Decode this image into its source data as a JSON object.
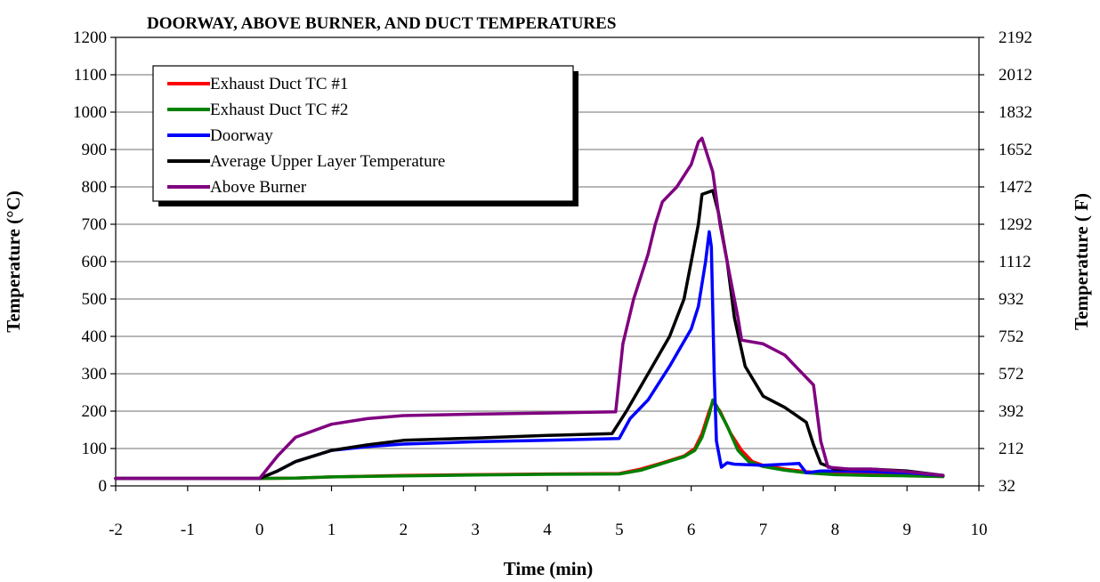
{
  "chart_data": {
    "type": "line",
    "title": "DOORWAY, ABOVE BURNER, AND DUCT TEMPERATURES",
    "xlabel": "Time (min)",
    "ylabel": "Temperature (°C)",
    "y2label": "Temperature ( F)",
    "xlim": [
      -2,
      10
    ],
    "ylim": [
      0,
      1200
    ],
    "x_ticks": [
      "-2",
      "-1",
      "0",
      "1",
      "2",
      "3",
      "4",
      "5",
      "6",
      "7",
      "8",
      "9",
      "10"
    ],
    "y_ticks": [
      "0",
      "100",
      "200",
      "300",
      "400",
      "500",
      "600",
      "700",
      "800",
      "900",
      "1000",
      "1100",
      "1200"
    ],
    "y2_ticks": [
      "32",
      "212",
      "392",
      "572",
      "752",
      "932",
      "1112",
      "1292",
      "1472",
      "1652",
      "1832",
      "2012",
      "2192"
    ],
    "grid": true,
    "legend_position": "top-left",
    "series": [
      {
        "name": "Exhaust Duct TC #1",
        "color": "#ff0000",
        "points": [
          [
            -2,
            20
          ],
          [
            0,
            20
          ],
          [
            0.5,
            21
          ],
          [
            1,
            24
          ],
          [
            2,
            28
          ],
          [
            3,
            30
          ],
          [
            4,
            32
          ],
          [
            5,
            33
          ],
          [
            5.3,
            45
          ],
          [
            5.6,
            62
          ],
          [
            5.9,
            80
          ],
          [
            6.05,
            100
          ],
          [
            6.15,
            140
          ],
          [
            6.25,
            200
          ],
          [
            6.3,
            225
          ],
          [
            6.4,
            200
          ],
          [
            6.55,
            140
          ],
          [
            6.7,
            95
          ],
          [
            6.85,
            65
          ],
          [
            7,
            55
          ],
          [
            7.3,
            45
          ],
          [
            7.6,
            38
          ],
          [
            8,
            32
          ],
          [
            8.5,
            30
          ],
          [
            9,
            28
          ],
          [
            9.5,
            25
          ]
        ]
      },
      {
        "name": "Exhaust Duct TC #2",
        "color": "#008000",
        "points": [
          [
            -2,
            20
          ],
          [
            0,
            20
          ],
          [
            0.5,
            21
          ],
          [
            1,
            24
          ],
          [
            2,
            27
          ],
          [
            3,
            29
          ],
          [
            4,
            31
          ],
          [
            5,
            32
          ],
          [
            5.3,
            42
          ],
          [
            5.6,
            60
          ],
          [
            5.9,
            78
          ],
          [
            6.05,
            95
          ],
          [
            6.15,
            130
          ],
          [
            6.25,
            190
          ],
          [
            6.3,
            230
          ],
          [
            6.35,
            215
          ],
          [
            6.5,
            160
          ],
          [
            6.65,
            95
          ],
          [
            6.8,
            65
          ],
          [
            7,
            52
          ],
          [
            7.3,
            42
          ],
          [
            7.6,
            35
          ],
          [
            8,
            30
          ],
          [
            8.5,
            28
          ],
          [
            9,
            27
          ],
          [
            9.5,
            25
          ]
        ]
      },
      {
        "name": "Doorway",
        "color": "#0000ff",
        "points": [
          [
            -2,
            20
          ],
          [
            0,
            20
          ],
          [
            0.25,
            40
          ],
          [
            0.5,
            65
          ],
          [
            1,
            95
          ],
          [
            1.5,
            105
          ],
          [
            2,
            112
          ],
          [
            3,
            118
          ],
          [
            4,
            122
          ],
          [
            5,
            127
          ],
          [
            5.15,
            180
          ],
          [
            5.4,
            230
          ],
          [
            5.7,
            320
          ],
          [
            6,
            420
          ],
          [
            6.1,
            480
          ],
          [
            6.2,
            600
          ],
          [
            6.25,
            680
          ],
          [
            6.28,
            640
          ],
          [
            6.32,
            300
          ],
          [
            6.35,
            120
          ],
          [
            6.42,
            50
          ],
          [
            6.5,
            62
          ],
          [
            6.6,
            58
          ],
          [
            7,
            55
          ],
          [
            7.5,
            60
          ],
          [
            7.6,
            35
          ],
          [
            7.8,
            40
          ],
          [
            8,
            40
          ],
          [
            8.5,
            38
          ],
          [
            9,
            35
          ],
          [
            9.5,
            28
          ]
        ]
      },
      {
        "name": "Average Upper Layer Temperature",
        "color": "#000000",
        "points": [
          [
            -2,
            20
          ],
          [
            0,
            20
          ],
          [
            0.25,
            40
          ],
          [
            0.5,
            65
          ],
          [
            1,
            95
          ],
          [
            1.5,
            110
          ],
          [
            2,
            122
          ],
          [
            3,
            128
          ],
          [
            4,
            135
          ],
          [
            4.9,
            140
          ],
          [
            5.1,
            200
          ],
          [
            5.4,
            300
          ],
          [
            5.7,
            400
          ],
          [
            5.9,
            500
          ],
          [
            6,
            600
          ],
          [
            6.1,
            700
          ],
          [
            6.15,
            780
          ],
          [
            6.3,
            790
          ],
          [
            6.38,
            730
          ],
          [
            6.5,
            600
          ],
          [
            6.6,
            450
          ],
          [
            6.75,
            320
          ],
          [
            7,
            240
          ],
          [
            7.3,
            210
          ],
          [
            7.6,
            170
          ],
          [
            7.7,
            110
          ],
          [
            7.8,
            60
          ],
          [
            8,
            45
          ],
          [
            8.5,
            45
          ],
          [
            9,
            40
          ],
          [
            9.5,
            28
          ]
        ]
      },
      {
        "name": "Above Burner",
        "color": "#800080",
        "points": [
          [
            -2,
            20
          ],
          [
            0,
            20
          ],
          [
            0.25,
            80
          ],
          [
            0.5,
            130
          ],
          [
            1,
            165
          ],
          [
            1.5,
            180
          ],
          [
            2,
            188
          ],
          [
            3,
            192
          ],
          [
            4,
            195
          ],
          [
            4.95,
            198
          ],
          [
            5.05,
            380
          ],
          [
            5.2,
            500
          ],
          [
            5.4,
            620
          ],
          [
            5.5,
            700
          ],
          [
            5.6,
            760
          ],
          [
            5.8,
            800
          ],
          [
            6,
            860
          ],
          [
            6.1,
            920
          ],
          [
            6.15,
            930
          ],
          [
            6.3,
            840
          ],
          [
            6.4,
            700
          ],
          [
            6.55,
            550
          ],
          [
            6.65,
            450
          ],
          [
            6.7,
            390
          ],
          [
            7,
            380
          ],
          [
            7.3,
            350
          ],
          [
            7.5,
            310
          ],
          [
            7.7,
            270
          ],
          [
            7.8,
            120
          ],
          [
            7.9,
            50
          ],
          [
            8.2,
            45
          ],
          [
            8.5,
            45
          ],
          [
            9,
            38
          ],
          [
            9.5,
            28
          ]
        ]
      }
    ]
  }
}
